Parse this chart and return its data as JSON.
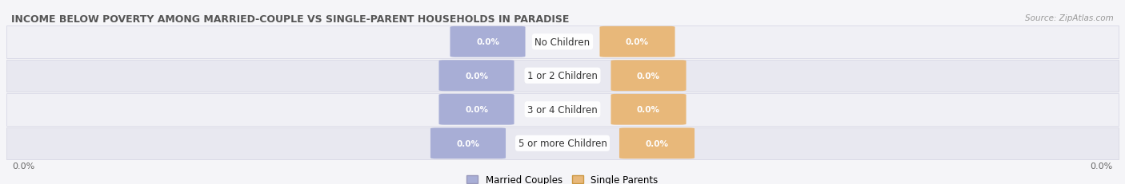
{
  "title": "INCOME BELOW POVERTY AMONG MARRIED-COUPLE VS SINGLE-PARENT HOUSEHOLDS IN PARADISE",
  "source": "Source: ZipAtlas.com",
  "categories": [
    "No Children",
    "1 or 2 Children",
    "3 or 4 Children",
    "5 or more Children"
  ],
  "married_values": [
    0.0,
    0.0,
    0.0,
    0.0
  ],
  "single_values": [
    0.0,
    0.0,
    0.0,
    0.0
  ],
  "married_color": "#a8aed6",
  "single_color": "#e8b87a",
  "row_bg_even": "#f0f0f5",
  "row_bg_odd": "#e8e8f0",
  "x_left_label": "0.0%",
  "x_right_label": "0.0%",
  "legend_married": "Married Couples",
  "legend_single": "Single Parents",
  "fig_bg": "#f5f5f8",
  "title_color": "#555555",
  "source_color": "#999999",
  "axis_label_color": "#666666"
}
